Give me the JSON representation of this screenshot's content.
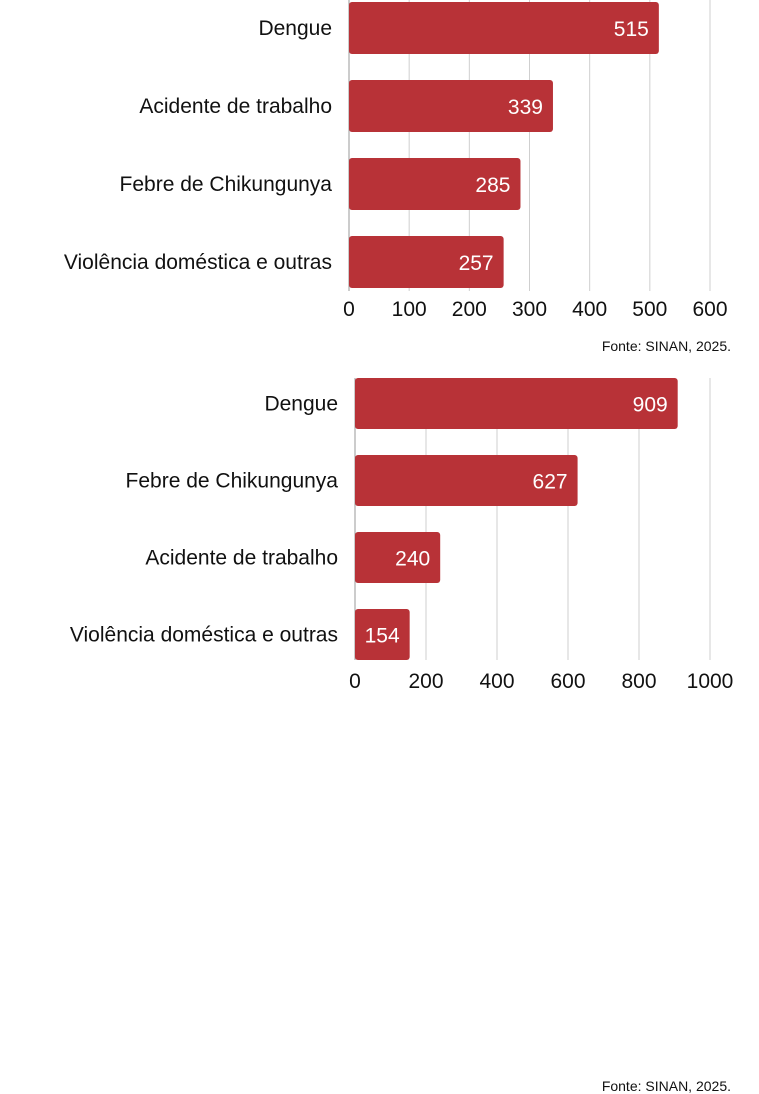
{
  "chart_data": [
    {
      "type": "bar",
      "orientation": "horizontal",
      "categories": [
        "Dengue",
        "Acidente de trabalho",
        "Febre de Chikungunya",
        "Violência doméstica e outras"
      ],
      "values": [
        515,
        339,
        285,
        257
      ],
      "xlim": [
        0,
        600
      ],
      "ticks": [
        0,
        100,
        200,
        300,
        400,
        500,
        600
      ],
      "grid": true,
      "bar_color": "#b83237",
      "source": "Fonte:  SINAN, 2025."
    },
    {
      "type": "bar",
      "orientation": "horizontal",
      "categories": [
        "Dengue",
        "Febre de Chikungunya",
        "Acidente de trabalho",
        "Violência doméstica e outras"
      ],
      "values": [
        909,
        627,
        240,
        154
      ],
      "xlim": [
        0,
        1000
      ],
      "ticks": [
        0,
        200,
        400,
        600,
        800,
        1000
      ],
      "grid": true,
      "bar_color": "#b83237",
      "source": "Fonte:  SINAN, 2025."
    }
  ]
}
